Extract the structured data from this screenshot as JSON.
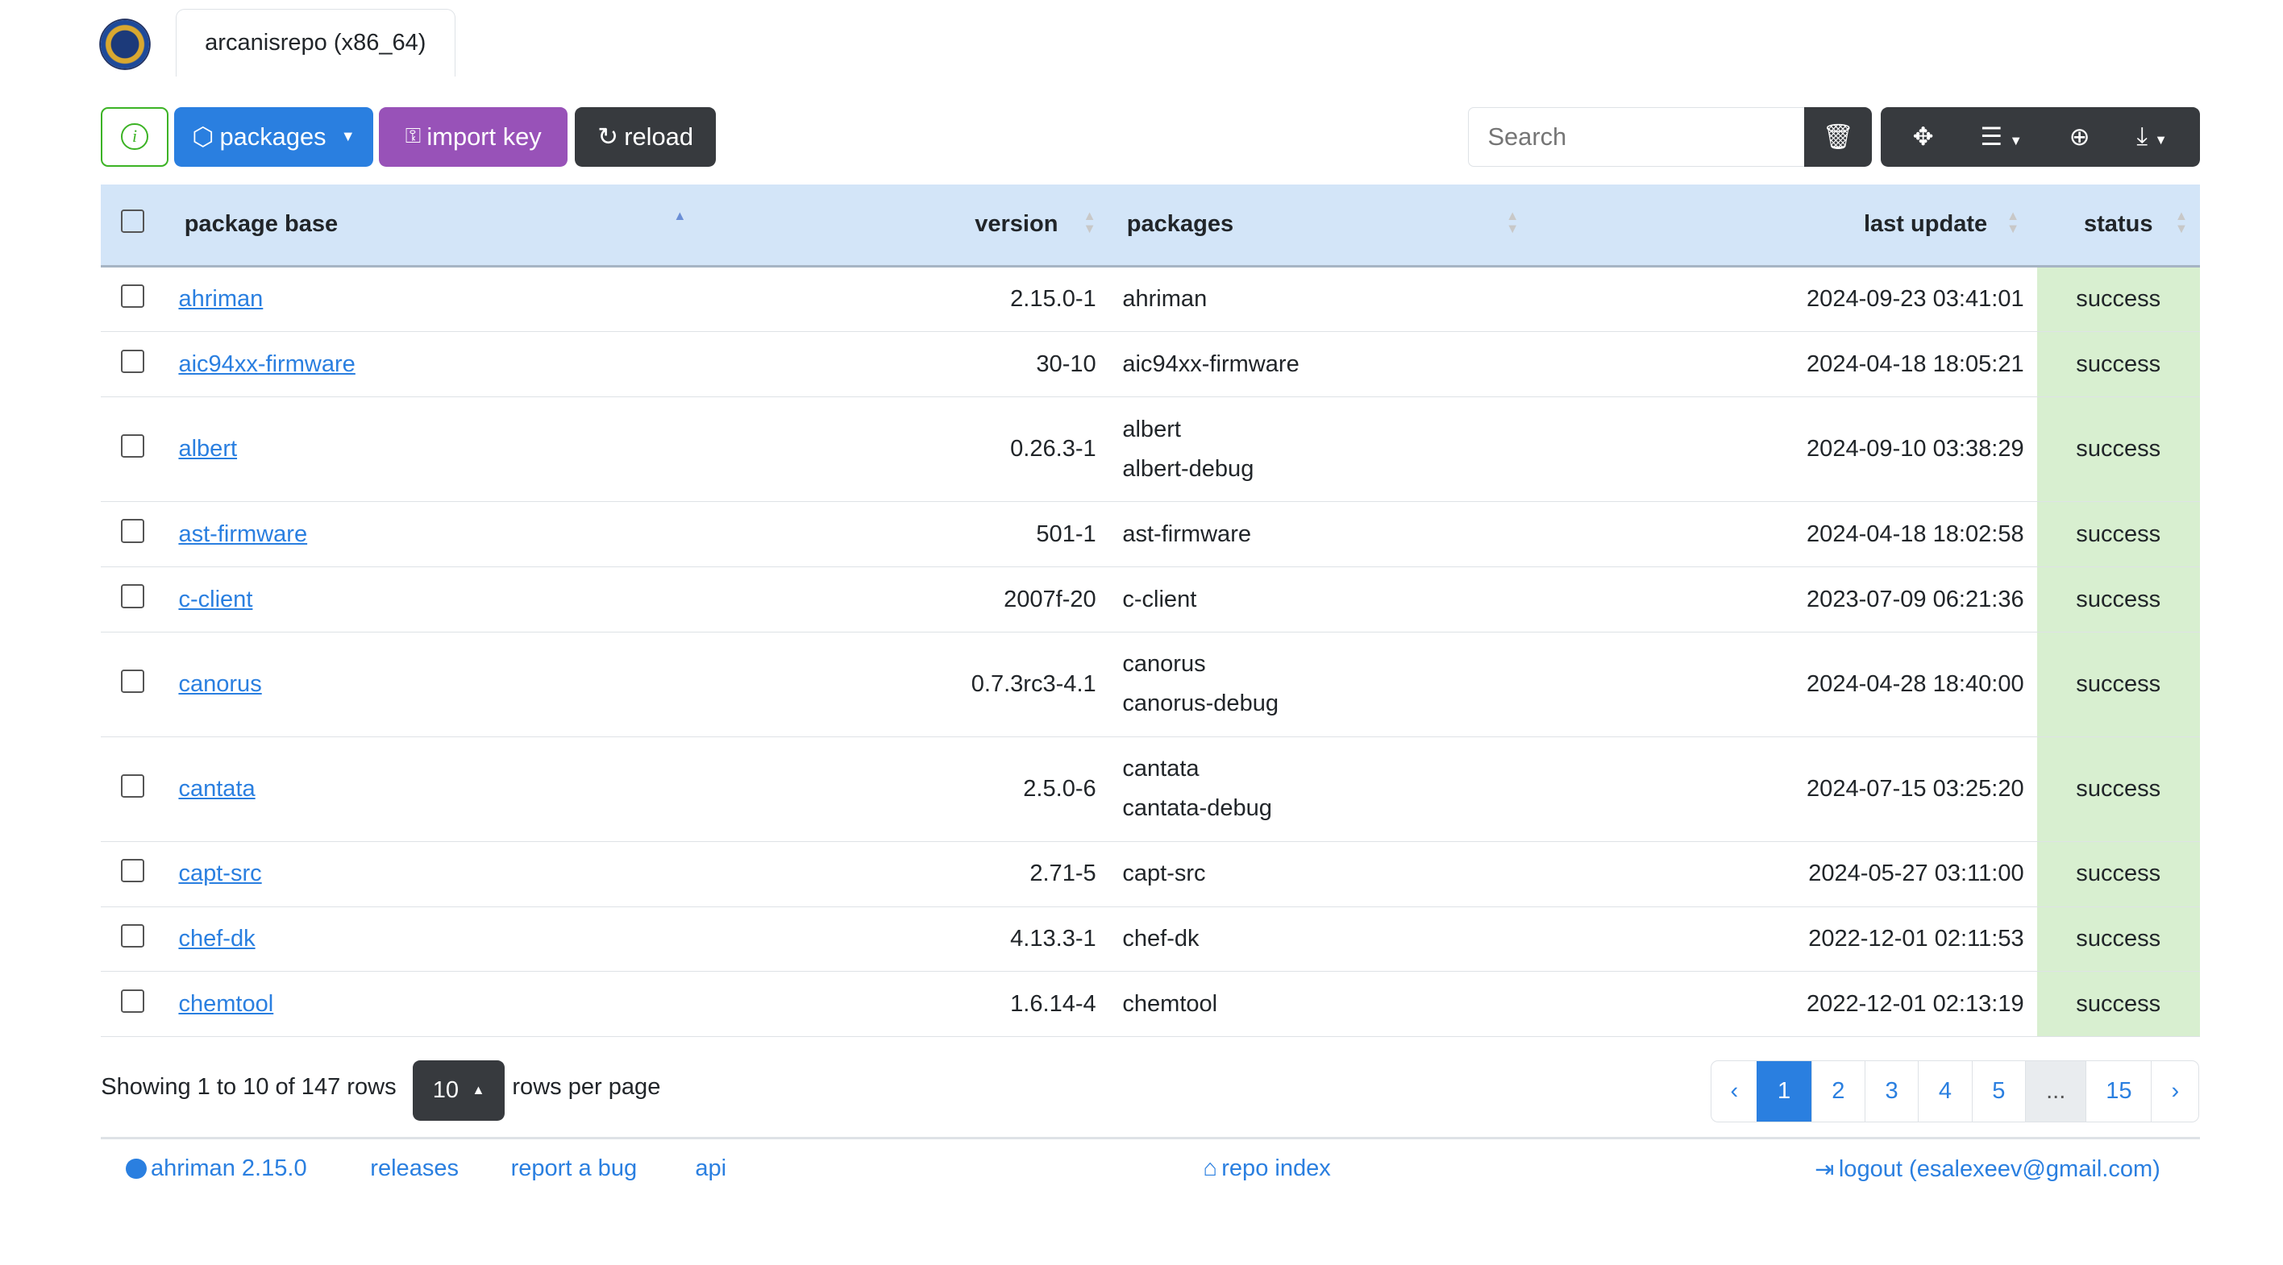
{
  "header": {
    "repo_tab": "arcanisrepo (x86_64)",
    "logo_text": "ahriman"
  },
  "toolbar": {
    "info_icon": "info-circle-icon",
    "packages_label": "packages",
    "import_key_label": "import key",
    "reload_label": "reload",
    "search_placeholder": "Search"
  },
  "colors": {
    "primary": "#2a7fe0",
    "import_key": "#9852b8",
    "dark": "#373a3e",
    "info_border": "#3cb325",
    "header_bg": "#d3e5f8",
    "success_bg": "#d8efd0"
  },
  "table": {
    "columns": [
      "package base",
      "version",
      "packages",
      "last update",
      "status"
    ],
    "rows": [
      {
        "base": "ahriman",
        "version": "2.15.0-1",
        "packages": [
          "ahriman"
        ],
        "updated": "2024-09-23 03:41:01",
        "status": "success"
      },
      {
        "base": "aic94xx-firmware",
        "version": "30-10",
        "packages": [
          "aic94xx-firmware"
        ],
        "updated": "2024-04-18 18:05:21",
        "status": "success"
      },
      {
        "base": "albert",
        "version": "0.26.3-1",
        "packages": [
          "albert",
          "albert-debug"
        ],
        "updated": "2024-09-10 03:38:29",
        "status": "success"
      },
      {
        "base": "ast-firmware",
        "version": "501-1",
        "packages": [
          "ast-firmware"
        ],
        "updated": "2024-04-18 18:02:58",
        "status": "success"
      },
      {
        "base": "c-client",
        "version": "2007f-20",
        "packages": [
          "c-client"
        ],
        "updated": "2023-07-09 06:21:36",
        "status": "success"
      },
      {
        "base": "canorus",
        "version": "0.7.3rc3-4.1",
        "packages": [
          "canorus",
          "canorus-debug"
        ],
        "updated": "2024-04-28 18:40:00",
        "status": "success"
      },
      {
        "base": "cantata",
        "version": "2.5.0-6",
        "packages": [
          "cantata",
          "cantata-debug"
        ],
        "updated": "2024-07-15 03:25:20",
        "status": "success"
      },
      {
        "base": "capt-src",
        "version": "2.71-5",
        "packages": [
          "capt-src"
        ],
        "updated": "2024-05-27 03:11:00",
        "status": "success"
      },
      {
        "base": "chef-dk",
        "version": "4.13.3-1",
        "packages": [
          "chef-dk"
        ],
        "updated": "2022-12-01 02:11:53",
        "status": "success"
      },
      {
        "base": "chemtool",
        "version": "1.6.14-4",
        "packages": [
          "chemtool"
        ],
        "updated": "2022-12-01 02:13:19",
        "status": "success"
      }
    ]
  },
  "pagination": {
    "summary": "Showing 1 to 10 of 147 rows",
    "page_size": "10",
    "rows_per_page": "rows per page",
    "prev": "‹",
    "pages": [
      "1",
      "2",
      "3",
      "4",
      "5",
      "...",
      "15"
    ],
    "next": "›",
    "current": "1"
  },
  "footer": {
    "version_link": "ahriman 2.15.0",
    "releases": "releases",
    "report_bug": "report a bug",
    "api": "api",
    "repo_index": "repo index",
    "logout": "logout (esalexeev@gmail.com)"
  }
}
